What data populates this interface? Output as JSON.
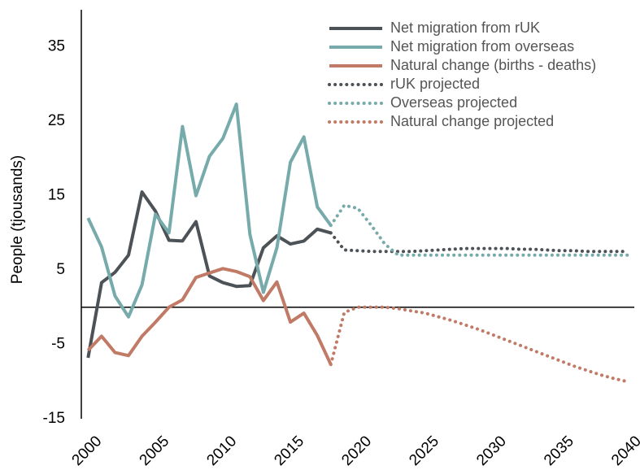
{
  "chart_data": {
    "type": "line",
    "y_label": "People (tjousands)",
    "xlim": [
      1999.5,
      2040.5
    ],
    "xticks": [
      2000,
      2005,
      2010,
      2015,
      2020,
      2025,
      2030,
      2035,
      2040
    ],
    "ylim": [
      -15,
      40
    ],
    "yticks": [
      -15,
      -5,
      5,
      15,
      25,
      35
    ],
    "grid": false,
    "legend": "top-right",
    "series": [
      {
        "name": "Net migration from rUK",
        "color": "#4d5257",
        "dash": "solid",
        "x": [
          2000,
          2001,
          2002,
          2003,
          2004,
          2005,
          2006,
          2007,
          2008,
          2009,
          2010,
          2011,
          2012,
          2013,
          2014,
          2015,
          2016,
          2017,
          2018
        ],
        "values": [
          -6.8,
          3.3,
          4.7,
          7,
          15.5,
          12.9,
          9,
          8.9,
          11.5,
          4.2,
          3.3,
          2.8,
          2.9,
          8,
          9.6,
          8.5,
          8.9,
          10.5,
          10
        ]
      },
      {
        "name": "Net migration from overseas",
        "color": "#77aaaa",
        "dash": "solid",
        "x": [
          2000,
          2001,
          2002,
          2003,
          2004,
          2005,
          2006,
          2007,
          2008,
          2009,
          2010,
          2011,
          2012,
          2013,
          2014,
          2015,
          2016,
          2017,
          2018
        ],
        "values": [
          12,
          8.1,
          1.5,
          -1.3,
          3,
          12.5,
          10,
          24.3,
          15,
          20.3,
          22.7,
          27.3,
          9.8,
          2,
          8,
          19.5,
          22.9,
          13.5,
          11
        ]
      },
      {
        "name": "Natural change (births - deaths)",
        "color": "#c07a66",
        "dash": "solid",
        "x": [
          2000,
          2001,
          2002,
          2003,
          2004,
          2005,
          2006,
          2007,
          2008,
          2009,
          2010,
          2011,
          2012,
          2013,
          2014,
          2015,
          2016,
          2017,
          2018
        ],
        "values": [
          -5.8,
          -3.9,
          -6.1,
          -6.5,
          -3.9,
          -2,
          0,
          1,
          4,
          4.6,
          5.2,
          4.8,
          4.1,
          0.9,
          3.4,
          -2,
          -0.8,
          -3.8,
          -7.7
        ]
      },
      {
        "name": "rUK projected",
        "color": "#4d5257",
        "dash": "dotted",
        "x": [
          2018,
          2019,
          2020,
          2021,
          2022,
          2023,
          2024,
          2025,
          2026,
          2027,
          2028,
          2029,
          2030,
          2031,
          2032,
          2033,
          2034,
          2035,
          2036,
          2037,
          2038,
          2039,
          2040
        ],
        "values": [
          10,
          7.7,
          7.6,
          7.5,
          7.5,
          7.5,
          7.5,
          7.6,
          7.7,
          7.8,
          7.9,
          7.9,
          7.9,
          7.9,
          7.8,
          7.8,
          7.7,
          7.6,
          7.6,
          7.5,
          7.5,
          7.5,
          7.5
        ]
      },
      {
        "name": "Overseas projected",
        "color": "#77aaaa",
        "dash": "dotted",
        "x": [
          2018,
          2019,
          2020,
          2021,
          2022,
          2023,
          2024,
          2025,
          2026,
          2027,
          2028,
          2029,
          2030,
          2031,
          2032,
          2033,
          2034,
          2035,
          2036,
          2037,
          2038,
          2039,
          2040
        ],
        "values": [
          11,
          13.7,
          13.3,
          11,
          8.5,
          7,
          7,
          7,
          7,
          7,
          7,
          7,
          7,
          7,
          7,
          7,
          7,
          7,
          7,
          7,
          7,
          7,
          7
        ]
      },
      {
        "name": "Natural change projected",
        "color": "#c07a66",
        "dash": "dotted",
        "x": [
          2018,
          2019,
          2020,
          2021,
          2022,
          2023,
          2024,
          2025,
          2026,
          2027,
          2028,
          2029,
          2030,
          2031,
          2032,
          2033,
          2034,
          2035,
          2036,
          2037,
          2038,
          2039,
          2040
        ],
        "values": [
          -7.7,
          -0.7,
          0,
          0,
          0,
          -0.2,
          -0.5,
          -0.8,
          -1.3,
          -1.8,
          -2.4,
          -3,
          -3.7,
          -4.4,
          -5.1,
          -5.8,
          -6.5,
          -7.2,
          -7.9,
          -8.5,
          -9.1,
          -9.6,
          -10
        ]
      }
    ]
  }
}
